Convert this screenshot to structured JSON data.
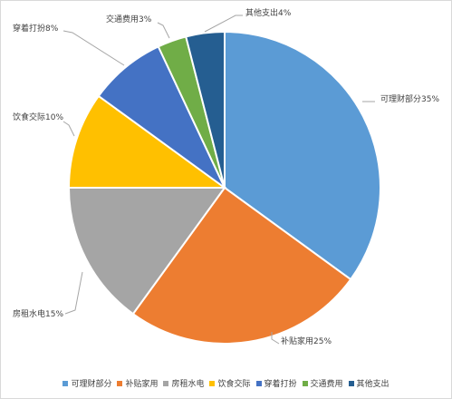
{
  "chart_data": {
    "type": "pie",
    "slices": [
      {
        "name": "可理财部分",
        "value": 35,
        "label": "可理财部分35%",
        "color": "#5b9bd5"
      },
      {
        "name": "补贴家用",
        "value": 25,
        "label": "补贴家用25%",
        "color": "#ed7d31"
      },
      {
        "name": "房租水电",
        "value": 15,
        "label": "房租水电15%",
        "color": "#a5a5a5"
      },
      {
        "name": "饮食交际",
        "value": 10,
        "label": "饮食交际10%",
        "color": "#ffc000"
      },
      {
        "name": "穿着打扮",
        "value": 8,
        "label": "穿着打扮8%",
        "color": "#4472c4"
      },
      {
        "name": "交通费用",
        "value": 3,
        "label": "交通费用3%",
        "color": "#70ad47"
      },
      {
        "name": "其他支出",
        "value": 4,
        "label": "其他支出4%",
        "color": "#255e91"
      }
    ],
    "legend_position": "bottom"
  }
}
